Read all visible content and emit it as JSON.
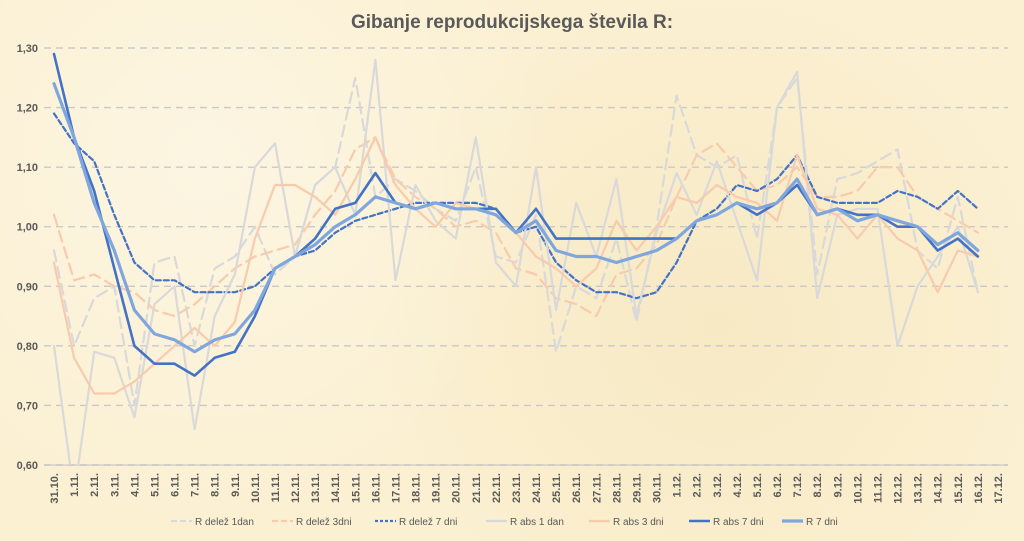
{
  "chart_data": {
    "type": "line",
    "title": "Gibanje reprodukcijskega števila R:",
    "xlabel": "",
    "ylabel": "",
    "ylim": [
      0.6,
      1.3
    ],
    "yticks": [
      "0,60",
      "0,70",
      "0,80",
      "0,90",
      "1,00",
      "1,10",
      "1,20",
      "1,30"
    ],
    "grid": "horizontal dashed",
    "legend_position": "bottom",
    "categories": [
      "31.10.",
      "1.11.",
      "2.11.",
      "3.11.",
      "4.11.",
      "5.11.",
      "6.11.",
      "7.11.",
      "8.11.",
      "9.11.",
      "10.11.",
      "11.11.",
      "12.11.",
      "13.11.",
      "14.11.",
      "15.11.",
      "16.11.",
      "17.11.",
      "18.11.",
      "19.11.",
      "20.11.",
      "21.11.",
      "22.11.",
      "23.11.",
      "24.11.",
      "25.11.",
      "26.11.",
      "27.11.",
      "28.11.",
      "29.11.",
      "30.11.",
      "1.12.",
      "2.12.",
      "3.12.",
      "4.12.",
      "5.12.",
      "6.12.",
      "7.12.",
      "8.12.",
      "9.12.",
      "10.12.",
      "11.12.",
      "12.12.",
      "13.12.",
      "14.12.",
      "15.12.",
      "16.12.",
      "17.12."
    ],
    "series": [
      {
        "name": "R delež 1dan",
        "color": "#d9d9d9",
        "dash": "long",
        "width": 2.2,
        "values": [
          0.96,
          0.8,
          0.88,
          0.9,
          0.7,
          0.94,
          0.95,
          0.8,
          0.93,
          0.95,
          1.0,
          0.92,
          0.95,
          1.07,
          1.1,
          1.25,
          1.05,
          1.08,
          1.06,
          1.03,
          1.01,
          1.1,
          0.95,
          0.94,
          1.02,
          0.79,
          0.9,
          0.88,
          0.98,
          0.84,
          1.0,
          1.22,
          1.12,
          1.1,
          1.12,
          0.98,
          1.2,
          1.25,
          0.92,
          1.08,
          1.09,
          1.11,
          1.13,
          0.96,
          0.93,
          1.05,
          0.89,
          null
        ]
      },
      {
        "name": "R delež 3dni",
        "color": "#f8cbad",
        "dash": "long",
        "width": 2.2,
        "values": [
          1.02,
          0.91,
          0.92,
          0.9,
          0.89,
          0.86,
          0.85,
          0.87,
          0.9,
          0.93,
          0.95,
          0.96,
          0.97,
          1.02,
          1.06,
          1.13,
          1.15,
          1.08,
          1.05,
          1.03,
          1.0,
          1.01,
          0.99,
          0.93,
          0.92,
          0.88,
          0.87,
          0.85,
          0.92,
          0.93,
          0.97,
          1.05,
          1.12,
          1.14,
          1.1,
          1.06,
          1.07,
          1.1,
          1.05,
          1.05,
          1.06,
          1.1,
          1.1,
          1.05,
          1.03,
          1.01,
          0.99,
          null
        ]
      },
      {
        "name": "R delež 7 dni",
        "color": "#4472c4",
        "dash": "short",
        "width": 2.2,
        "values": [
          1.19,
          1.14,
          1.11,
          1.02,
          0.94,
          0.91,
          0.91,
          0.89,
          0.89,
          0.89,
          0.9,
          0.93,
          0.95,
          0.96,
          0.99,
          1.01,
          1.02,
          1.03,
          1.04,
          1.04,
          1.04,
          1.04,
          1.03,
          0.99,
          1.0,
          0.94,
          0.91,
          0.89,
          0.89,
          0.88,
          0.89,
          0.94,
          1.01,
          1.03,
          1.07,
          1.06,
          1.08,
          1.12,
          1.05,
          1.04,
          1.04,
          1.04,
          1.06,
          1.05,
          1.03,
          1.06,
          1.03,
          null
        ]
      },
      {
        "name": "R abs 1 dan",
        "color": "#d9d9d9",
        "dash": "solid",
        "width": 2.2,
        "values": [
          0.8,
          0.55,
          0.79,
          0.78,
          0.68,
          0.87,
          0.9,
          0.66,
          0.85,
          0.92,
          1.1,
          1.14,
          0.95,
          1.07,
          1.1,
          1.02,
          1.28,
          0.91,
          1.07,
          1.01,
          0.98,
          1.15,
          0.94,
          0.9,
          1.1,
          0.86,
          1.04,
          0.95,
          1.08,
          0.85,
          0.99,
          1.09,
          1.02,
          1.11,
          1.01,
          0.91,
          1.2,
          1.26,
          0.88,
          1.02,
          1.03,
          1.03,
          0.8,
          0.9,
          0.95,
          1.0,
          0.89,
          null
        ]
      },
      {
        "name": "R abs 3 dni",
        "color": "#f8cbad",
        "dash": "solid",
        "width": 2.2,
        "values": [
          0.94,
          0.78,
          0.72,
          0.72,
          0.74,
          0.77,
          0.8,
          0.83,
          0.8,
          0.84,
          0.98,
          1.07,
          1.07,
          1.05,
          1.02,
          1.08,
          1.15,
          1.07,
          1.03,
          1.0,
          1.04,
          1.03,
          1.02,
          0.99,
          0.95,
          0.93,
          0.9,
          0.93,
          1.01,
          0.96,
          1.0,
          1.05,
          1.04,
          1.07,
          1.05,
          1.04,
          1.01,
          1.12,
          1.03,
          1.02,
          0.98,
          1.02,
          0.98,
          0.96,
          0.89,
          0.96,
          0.95,
          null
        ]
      },
      {
        "name": "R abs 7 dni",
        "color": "#4472c4",
        "dash": "solid",
        "width": 2.6,
        "values": [
          1.29,
          1.15,
          1.06,
          0.93,
          0.8,
          0.77,
          0.77,
          0.75,
          0.78,
          0.79,
          0.85,
          0.93,
          0.95,
          0.98,
          1.03,
          1.04,
          1.09,
          1.04,
          1.03,
          1.04,
          1.03,
          1.03,
          1.03,
          0.99,
          1.03,
          0.98,
          0.98,
          0.98,
          0.98,
          0.98,
          0.98,
          0.98,
          1.01,
          1.02,
          1.04,
          1.02,
          1.04,
          1.07,
          1.02,
          1.03,
          1.02,
          1.02,
          1.0,
          1.0,
          0.96,
          0.98,
          0.95,
          null
        ]
      },
      {
        "name": "R 7 dni",
        "color": "#7fa7dd",
        "dash": "solid",
        "width": 3.2,
        "values": [
          1.24,
          1.15,
          1.04,
          0.96,
          0.86,
          0.82,
          0.81,
          0.79,
          0.81,
          0.82,
          0.86,
          0.93,
          0.95,
          0.97,
          1.0,
          1.02,
          1.05,
          1.04,
          1.03,
          1.04,
          1.03,
          1.03,
          1.02,
          0.99,
          1.01,
          0.96,
          0.95,
          0.95,
          0.94,
          0.95,
          0.96,
          0.98,
          1.01,
          1.02,
          1.04,
          1.03,
          1.04,
          1.08,
          1.02,
          1.03,
          1.01,
          1.02,
          1.01,
          1.0,
          0.97,
          0.99,
          0.96,
          null
        ]
      }
    ]
  }
}
